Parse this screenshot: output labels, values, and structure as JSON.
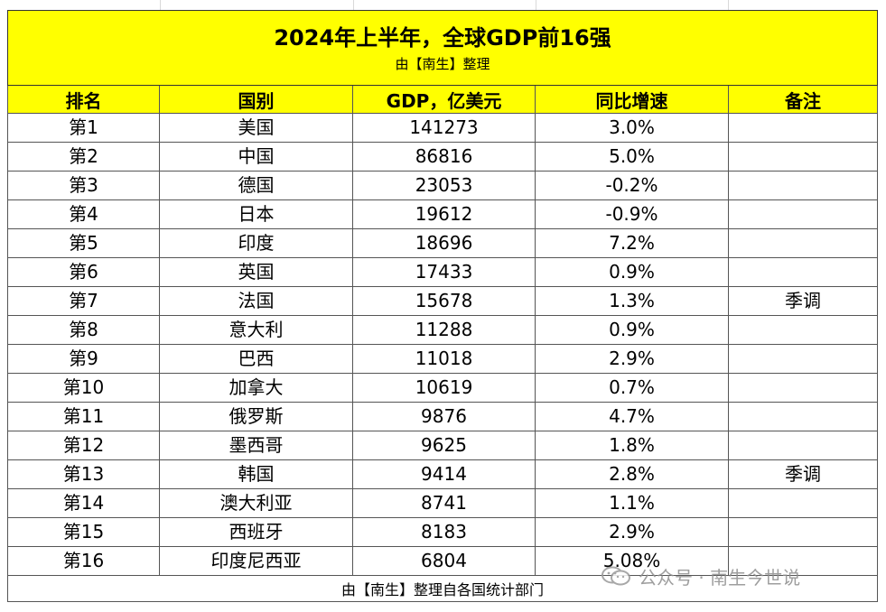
{
  "title": "2024年上半年，全球GDP前16强",
  "subtitle": "由【南生】整理",
  "headers": {
    "rank": "排名",
    "country": "国别",
    "gdp": "GDP，亿美元",
    "growth": "同比增速",
    "note": "备注"
  },
  "rows": [
    {
      "rank": "第1",
      "country": "美国",
      "gdp": "141273",
      "growth": "3.0%",
      "note": ""
    },
    {
      "rank": "第2",
      "country": "中国",
      "gdp": "86816",
      "growth": "5.0%",
      "note": ""
    },
    {
      "rank": "第3",
      "country": "德国",
      "gdp": "23053",
      "growth": "-0.2%",
      "note": ""
    },
    {
      "rank": "第4",
      "country": "日本",
      "gdp": "19612",
      "growth": "-0.9%",
      "note": ""
    },
    {
      "rank": "第5",
      "country": "印度",
      "gdp": "18696",
      "growth": "7.2%",
      "note": ""
    },
    {
      "rank": "第6",
      "country": "英国",
      "gdp": "17433",
      "growth": "0.9%",
      "note": ""
    },
    {
      "rank": "第7",
      "country": "法国",
      "gdp": "15678",
      "growth": "1.3%",
      "note": "季调"
    },
    {
      "rank": "第8",
      "country": "意大利",
      "gdp": "11288",
      "growth": "0.9%",
      "note": ""
    },
    {
      "rank": "第9",
      "country": "巴西",
      "gdp": "11018",
      "growth": "2.9%",
      "note": ""
    },
    {
      "rank": "第10",
      "country": "加拿大",
      "gdp": "10619",
      "growth": "0.7%",
      "note": ""
    },
    {
      "rank": "第11",
      "country": "俄罗斯",
      "gdp": "9876",
      "growth": "4.7%",
      "note": ""
    },
    {
      "rank": "第12",
      "country": "墨西哥",
      "gdp": "9625",
      "growth": "1.8%",
      "note": ""
    },
    {
      "rank": "第13",
      "country": "韩国",
      "gdp": "9414",
      "growth": "2.8%",
      "note": "季调"
    },
    {
      "rank": "第14",
      "country": "澳大利亚",
      "gdp": "8741",
      "growth": "1.1%",
      "note": ""
    },
    {
      "rank": "第15",
      "country": "西班牙",
      "gdp": "8183",
      "growth": "2.9%",
      "note": ""
    },
    {
      "rank": "第16",
      "country": "印度尼西亚",
      "gdp": "6804",
      "growth": "5.08%",
      "note": ""
    }
  ],
  "footer": "由【南生】整理自各国统计部门",
  "watermark": {
    "icon": "wechat-official-account-icon",
    "text": "公众号 · 南生今世说"
  },
  "colors": {
    "header_fill": "#ffff00",
    "border": "#555555",
    "watermark": "#8e8e8e"
  }
}
